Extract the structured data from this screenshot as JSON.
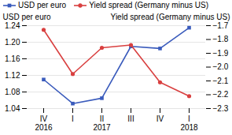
{
  "chart_data": {
    "type": "line",
    "categories": [
      "IV",
      "I",
      "II",
      "III",
      "IV",
      "I"
    ],
    "annotations": [
      {
        "text": "2016",
        "index": 0
      },
      {
        "text": "2017",
        "index": 2
      },
      {
        "text": "2018",
        "index": 5
      }
    ],
    "y_label": "USD per euro",
    "y2_label": "Yield spread (Germany minus US)",
    "ylim": [
      1.04,
      1.24
    ],
    "yticks": [
      1.04,
      1.08,
      1.12,
      1.16,
      {
        "value": 1.2,
        "label": "1.20"
      },
      1.24
    ],
    "y2lim": [
      -2.3,
      -1.7
    ],
    "y2ticks": [
      {
        "value": -2.3,
        "label": "−2.3"
      },
      {
        "value": -2.2,
        "label": "−2.2"
      },
      {
        "value": -2.1,
        "label": "−2.1"
      },
      {
        "value": -2,
        "label": "−2.0"
      },
      {
        "value": -1.9,
        "label": "−1.9"
      },
      {
        "value": -1.8,
        "label": "−1.8"
      },
      {
        "value": -1.7,
        "label": "−1.7"
      }
    ],
    "grid": true,
    "legend": "upper left",
    "series": [
      {
        "name": "USD per euro",
        "color": "#3a5bbc",
        "marker": "square",
        "values": [
          1.11,
          1.052,
          1.065,
          1.19,
          1.185,
          1.235
        ]
      },
      {
        "name": "Yield spread (Germany minus US)",
        "color": "#d94040",
        "marker": "circle",
        "axis": "y2",
        "values": [
          -1.73,
          -2.05,
          -1.86,
          -1.84,
          -2.11,
          -2.21
        ]
      }
    ]
  }
}
